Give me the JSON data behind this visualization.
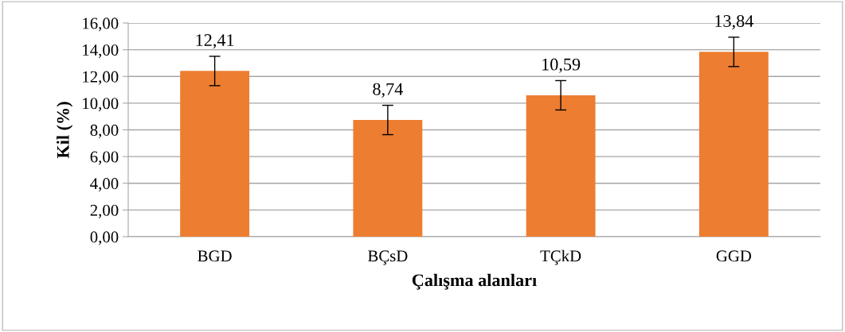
{
  "chart_data": {
    "type": "bar",
    "xlabel": "Çalışma alanları",
    "ylabel": "Kil (%)",
    "categories": [
      "BGD",
      "BÇsD",
      "TÇkD",
      "GGD"
    ],
    "values": [
      12.41,
      8.74,
      10.59,
      13.84
    ],
    "errors": [
      1.1,
      1.1,
      1.1,
      1.1
    ],
    "value_labels": [
      "12,41",
      "8,74",
      "10,59",
      "13,84"
    ],
    "color": "#ed7d31",
    "ylim": [
      0,
      16
    ],
    "yticks": [
      {
        "value": 0,
        "label": "0,00"
      },
      {
        "value": 2,
        "label": "2,00"
      },
      {
        "value": 4,
        "label": "4,00"
      },
      {
        "value": 6,
        "label": "6,00"
      },
      {
        "value": 8,
        "label": "8,00"
      },
      {
        "value": 10,
        "label": "10,00"
      },
      {
        "value": 12,
        "label": "12,00"
      },
      {
        "value": 14,
        "label": "14,00"
      },
      {
        "value": 16,
        "label": "16,00"
      }
    ],
    "grid": "y",
    "legend": false
  }
}
